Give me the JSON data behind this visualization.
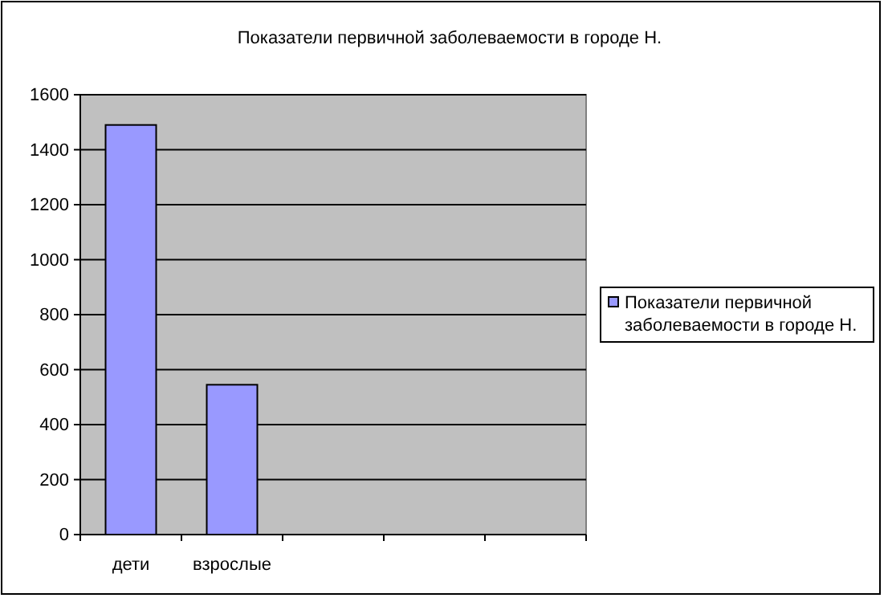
{
  "chart_data": {
    "type": "bar",
    "title": "Показатели первичной заболеваемости в городе Н.",
    "categories": [
      "дети",
      "взрослые",
      null,
      null,
      null
    ],
    "series": [
      {
        "name": "Показатели первичной заболеваемости в городе Н.",
        "color": "#9999ff",
        "values": [
          1490,
          545,
          null,
          null,
          null
        ]
      }
    ],
    "ylim": [
      0,
      1600
    ],
    "yticks": [
      0,
      200,
      400,
      600,
      800,
      1000,
      1200,
      1400,
      1600
    ],
    "grid": "y",
    "legend": "right"
  }
}
